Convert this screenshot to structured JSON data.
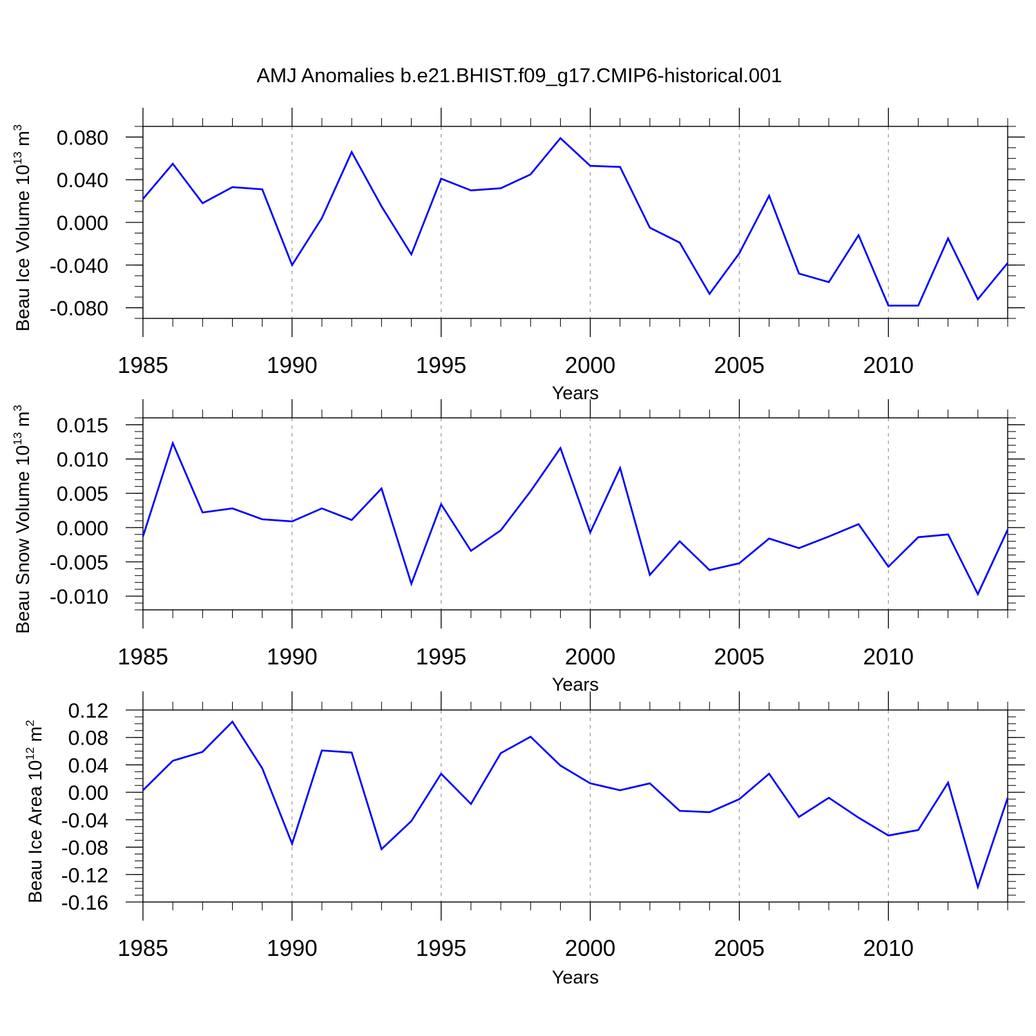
{
  "title": "AMJ Anomalies b.e21.BHIST.f09_g17.CMIP6-historical.001",
  "colors": {
    "series": "#0000ff",
    "axis": "#000000",
    "grid": "#999999"
  },
  "chart_data": [
    {
      "type": "line",
      "title": "AMJ Anomalies b.e21.BHIST.f09_g17.CMIP6-historical.001",
      "ylabel": {
        "text": "Beau Ice Volume 10",
        "exp": "13",
        "unit": "m",
        "unit_exp": "3"
      },
      "xlabel": "Years",
      "xlim": [
        1985,
        2014
      ],
      "ylim": [
        -0.09,
        0.09
      ],
      "xticks": [
        1985,
        1990,
        1995,
        2000,
        2005,
        2010
      ],
      "xtick_labels": [
        "1985",
        "1990",
        "1995",
        "2000",
        "2005",
        "2010"
      ],
      "yticks": [
        -0.08,
        -0.04,
        0.0,
        0.04,
        0.08
      ],
      "ytick_labels": [
        "-0.080",
        "-0.040",
        "0.000",
        "0.040",
        "0.080"
      ],
      "y_minor_step": 0.01,
      "grid_x": [
        1990,
        1995,
        2000,
        2005,
        2010
      ],
      "x": [
        1985,
        1986,
        1987,
        1988,
        1989,
        1990,
        1991,
        1992,
        1993,
        1994,
        1995,
        1996,
        1997,
        1998,
        1999,
        2000,
        2001,
        2002,
        2003,
        2004,
        2005,
        2006,
        2007,
        2008,
        2009,
        2010,
        2011,
        2012,
        2013,
        2014
      ],
      "values": [
        0.022,
        0.055,
        0.018,
        0.033,
        0.031,
        -0.04,
        0.004,
        0.066,
        0.015,
        -0.03,
        0.041,
        0.03,
        0.032,
        0.045,
        0.079,
        0.053,
        0.052,
        -0.005,
        -0.019,
        -0.067,
        -0.029,
        0.025,
        -0.048,
        -0.056,
        -0.012,
        -0.078,
        -0.078,
        -0.015,
        -0.072,
        -0.038
      ]
    },
    {
      "type": "line",
      "ylabel": {
        "text": "Beau Snow Volume 10",
        "exp": "13",
        "unit": "m",
        "unit_exp": "3"
      },
      "xlabel": "Years",
      "xlim": [
        1985,
        2014
      ],
      "ylim": [
        -0.012,
        0.016
      ],
      "xticks": [
        1985,
        1990,
        1995,
        2000,
        2005,
        2010
      ],
      "xtick_labels": [
        "1985",
        "1990",
        "1995",
        "2000",
        "2005",
        "2010"
      ],
      "yticks": [
        -0.01,
        -0.005,
        0.0,
        0.005,
        0.01,
        0.015
      ],
      "ytick_labels": [
        "-0.010",
        "-0.005",
        "0.000",
        "0.005",
        "0.010",
        "0.015"
      ],
      "y_minor_step": 0.001,
      "grid_x": [
        1990,
        1995,
        2000,
        2005,
        2010
      ],
      "x": [
        1985,
        1986,
        1987,
        1988,
        1989,
        1990,
        1991,
        1992,
        1993,
        1994,
        1995,
        1996,
        1997,
        1998,
        1999,
        2000,
        2001,
        2002,
        2003,
        2004,
        2005,
        2006,
        2007,
        2008,
        2009,
        2010,
        2011,
        2012,
        2013,
        2014
      ],
      "values": [
        -0.0013,
        0.0123,
        0.0022,
        0.0028,
        0.0012,
        0.0009,
        0.0028,
        0.0011,
        0.0057,
        -0.0082,
        0.0034,
        -0.0034,
        -0.0004,
        0.0053,
        0.0116,
        -0.0007,
        0.0087,
        -0.0069,
        -0.002,
        -0.0062,
        -0.0052,
        -0.0016,
        -0.003,
        -0.0013,
        0.0005,
        -0.0057,
        -0.0014,
        -0.001,
        -0.0097,
        -0.0003
      ]
    },
    {
      "type": "line",
      "ylabel": {
        "text": "Beau Ice Area 10",
        "exp": "12",
        "unit": "m",
        "unit_exp": "2"
      },
      "xlabel": "Years",
      "xlim": [
        1985,
        2014
      ],
      "ylim": [
        -0.16,
        0.12
      ],
      "xticks": [
        1985,
        1990,
        1995,
        2000,
        2005,
        2010
      ],
      "xtick_labels": [
        "1985",
        "1990",
        "1995",
        "2000",
        "2005",
        "2010"
      ],
      "yticks": [
        -0.16,
        -0.12,
        -0.08,
        -0.04,
        0.0,
        0.04,
        0.08,
        0.12
      ],
      "ytick_labels": [
        "-0.16",
        "-0.12",
        "-0.08",
        "-0.04",
        "0.00",
        "0.04",
        "0.08",
        "0.12"
      ],
      "y_minor_step": 0.01,
      "grid_x": [
        1990,
        1995,
        2000,
        2005,
        2010
      ],
      "x": [
        1985,
        1986,
        1987,
        1988,
        1989,
        1990,
        1991,
        1992,
        1993,
        1994,
        1995,
        1996,
        1997,
        1998,
        1999,
        2000,
        2001,
        2002,
        2003,
        2004,
        2005,
        2006,
        2007,
        2008,
        2009,
        2010,
        2011,
        2012,
        2013,
        2014
      ],
      "values": [
        0.003,
        0.046,
        0.059,
        0.103,
        0.035,
        -0.075,
        0.061,
        0.058,
        -0.083,
        -0.042,
        0.027,
        -0.017,
        0.057,
        0.081,
        0.039,
        0.013,
        0.003,
        0.013,
        -0.027,
        -0.029,
        -0.01,
        0.027,
        -0.036,
        -0.008,
        -0.037,
        -0.063,
        -0.055,
        0.014,
        -0.138,
        -0.008
      ]
    }
  ]
}
